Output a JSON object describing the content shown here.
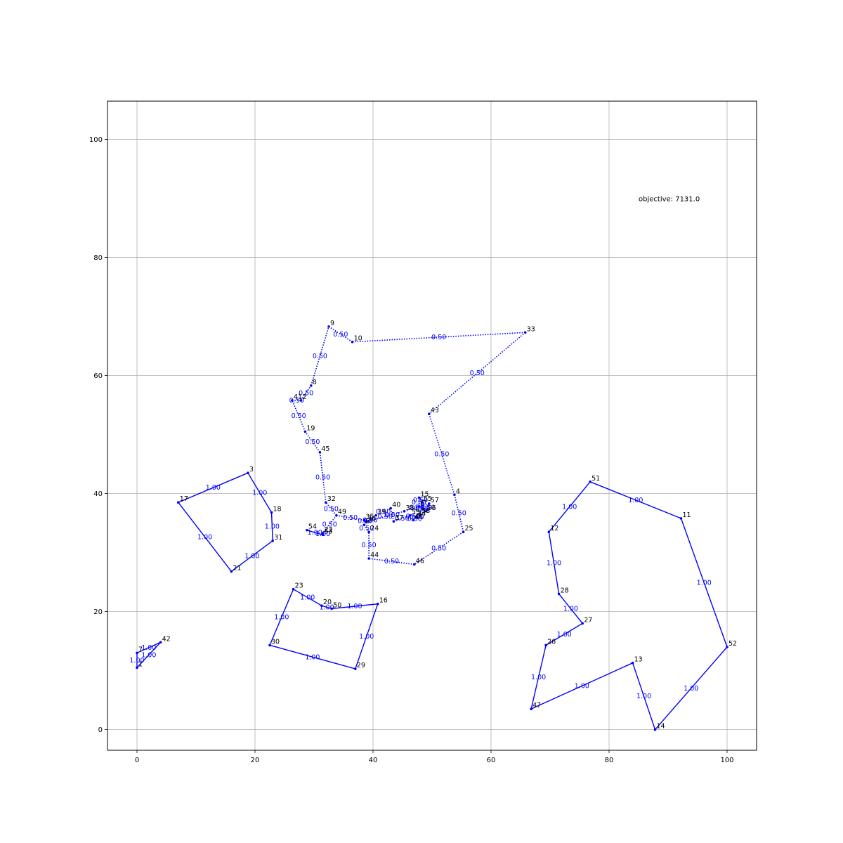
{
  "chart_data": {
    "type": "scatter",
    "title": "",
    "xlabel": "",
    "ylabel": "",
    "xlim": [
      -5,
      105
    ],
    "ylim": [
      -3.5,
      106.5
    ],
    "x_ticks": [
      0,
      20,
      40,
      60,
      80,
      100
    ],
    "y_ticks": [
      0,
      20,
      40,
      60,
      80,
      100
    ],
    "grid": true,
    "annotation": "objective: 7131.0",
    "colors": {
      "edge": "#0000ff",
      "node": "#0000ff",
      "label": "#000000",
      "grid": "#b0b0b0"
    },
    "nodes": [
      {
        "id": "1",
        "x": 0.0,
        "y": 10.5
      },
      {
        "id": "2",
        "x": 27.8,
        "y": 55.8
      },
      {
        "id": "3",
        "x": 18.8,
        "y": 43.5
      },
      {
        "id": "4",
        "x": 53.8,
        "y": 39.8
      },
      {
        "id": "5",
        "x": 47.8,
        "y": 37.8
      },
      {
        "id": "6",
        "x": 38.5,
        "y": 34.7
      },
      {
        "id": "7",
        "x": 0.0,
        "y": 13.0
      },
      {
        "id": "8",
        "x": 29.5,
        "y": 58.3
      },
      {
        "id": "9",
        "x": 32.5,
        "y": 68.3
      },
      {
        "id": "10",
        "x": 36.5,
        "y": 65.7
      },
      {
        "id": "11",
        "x": 92.2,
        "y": 35.8
      },
      {
        "id": "12",
        "x": 69.8,
        "y": 33.5
      },
      {
        "id": "13",
        "x": 84.0,
        "y": 11.3
      },
      {
        "id": "14",
        "x": 87.8,
        "y": 0.0
      },
      {
        "id": "15",
        "x": 47.8,
        "y": 39.3
      },
      {
        "id": "16",
        "x": 40.8,
        "y": 21.3
      },
      {
        "id": "17",
        "x": 7.0,
        "y": 38.5
      },
      {
        "id": "18",
        "x": 22.8,
        "y": 36.8
      },
      {
        "id": "19",
        "x": 28.5,
        "y": 50.5
      },
      {
        "id": "20",
        "x": 31.3,
        "y": 21.0
      },
      {
        "id": "21",
        "x": 16.0,
        "y": 26.8
      },
      {
        "id": "22",
        "x": 31.5,
        "y": 33.3
      },
      {
        "id": "23",
        "x": 26.5,
        "y": 23.8
      },
      {
        "id": "24",
        "x": 39.3,
        "y": 33.5
      },
      {
        "id": "25",
        "x": 55.3,
        "y": 33.5
      },
      {
        "id": "26",
        "x": 69.3,
        "y": 14.3
      },
      {
        "id": "27",
        "x": 75.5,
        "y": 18.0
      },
      {
        "id": "28",
        "x": 71.5,
        "y": 23.0
      },
      {
        "id": "29",
        "x": 37.0,
        "y": 10.3
      },
      {
        "id": "30",
        "x": 22.5,
        "y": 14.3
      },
      {
        "id": "31",
        "x": 23.0,
        "y": 32.0
      },
      {
        "id": "32",
        "x": 32.0,
        "y": 38.5
      },
      {
        "id": "33",
        "x": 65.8,
        "y": 67.3
      },
      {
        "id": "34",
        "x": 47.3,
        "y": 36.0
      },
      {
        "id": "35",
        "x": 38.5,
        "y": 35.5
      },
      {
        "id": "36",
        "x": 38.8,
        "y": 35.2
      },
      {
        "id": "37",
        "x": 43.5,
        "y": 35.3
      },
      {
        "id": "38",
        "x": 45.3,
        "y": 37.0
      },
      {
        "id": "39",
        "x": 40.5,
        "y": 36.3
      },
      {
        "id": "40",
        "x": 43.0,
        "y": 37.5
      },
      {
        "id": "41",
        "x": 26.3,
        "y": 55.8
      },
      {
        "id": "42",
        "x": 4.0,
        "y": 14.8
      },
      {
        "id": "43",
        "x": 49.5,
        "y": 53.5
      },
      {
        "id": "44",
        "x": 39.3,
        "y": 29.0
      },
      {
        "id": "45",
        "x": 31.0,
        "y": 47.0
      },
      {
        "id": "46",
        "x": 47.0,
        "y": 28.0
      },
      {
        "id": "47",
        "x": 66.8,
        "y": 3.5
      },
      {
        "id": "48",
        "x": 46.8,
        "y": 35.5
      },
      {
        "id": "49",
        "x": 33.8,
        "y": 36.3
      },
      {
        "id": "50",
        "x": 33.0,
        "y": 20.5
      },
      {
        "id": "51",
        "x": 76.8,
        "y": 42.0
      },
      {
        "id": "52",
        "x": 100.0,
        "y": 14.0
      },
      {
        "id": "53",
        "x": 31.5,
        "y": 33.0
      },
      {
        "id": "54",
        "x": 28.8,
        "y": 33.8
      },
      {
        "id": "55",
        "x": 48.3,
        "y": 38.5
      },
      {
        "id": "56",
        "x": 49.0,
        "y": 37.0
      },
      {
        "id": "57",
        "x": 49.5,
        "y": 38.3
      },
      {
        "id": "58",
        "x": 48.0,
        "y": 36.5
      },
      {
        "id": "59",
        "x": 46.3,
        "y": 36.3
      }
    ],
    "tours": [
      {
        "value": "1.00",
        "style": "solid",
        "path": [
          "17",
          "3",
          "18",
          "31",
          "21",
          "17"
        ]
      },
      {
        "value": "1.00",
        "style": "solid",
        "path": [
          "7",
          "42",
          "1",
          "7"
        ]
      },
      {
        "value": "1.00",
        "style": "solid",
        "path": [
          "23",
          "20",
          "50",
          "16",
          "29",
          "30",
          "23"
        ]
      },
      {
        "value": "1.00",
        "style": "solid",
        "path": [
          "12",
          "51",
          "11",
          "52",
          "14",
          "13",
          "47",
          "26",
          "27",
          "28",
          "12"
        ]
      },
      {
        "value": "1.00",
        "style": "solid",
        "path": [
          "54",
          "53",
          "22"
        ]
      },
      {
        "value": "0.50",
        "style": "dotted",
        "path": [
          "9",
          "10",
          "33",
          "43",
          "4",
          "25",
          "46",
          "44",
          "24",
          "6",
          "39",
          "40",
          "37",
          "59",
          "34",
          "48",
          "58",
          "55",
          "15",
          "5",
          "56",
          "57",
          "38",
          "36",
          "35",
          "49",
          "32",
          "45",
          "19",
          "41",
          "2",
          "8",
          "9"
        ]
      },
      {
        "value": "0.50",
        "style": "dotted",
        "path": [
          "49",
          "22"
        ]
      }
    ]
  }
}
